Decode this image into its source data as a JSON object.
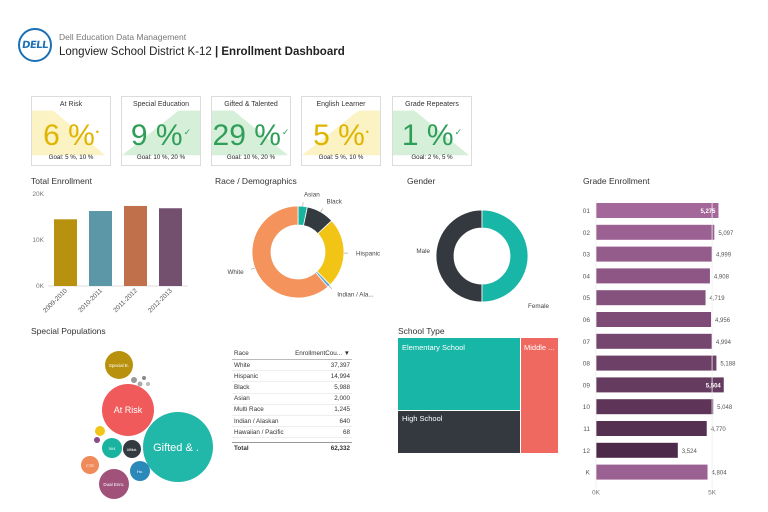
{
  "header": {
    "subtitle": "Dell Education Data Management",
    "district": "Longview School District K-12",
    "separator": "|",
    "dashboard": "Enrollment Dashboard",
    "logo_text": "DELL"
  },
  "kpis": [
    {
      "name": "At Risk",
      "value": "6 %",
      "mark": "•",
      "status": "amber",
      "goal": "Goal: 5 %, 10 %"
    },
    {
      "name": "Special Education",
      "value": "9 %",
      "mark": "✓",
      "status": "green",
      "goal": "Goal: 10 %, 20 %"
    },
    {
      "name": "Gifted & Talented",
      "value": "29 %",
      "mark": "✓",
      "status": "green",
      "goal": "Goal: 10 %, 20 %"
    },
    {
      "name": "English Learner",
      "value": "5 %",
      "mark": "•",
      "status": "amber",
      "goal": "Goal: 5 %, 10 %"
    },
    {
      "name": "Grade Repeaters",
      "value": "1 %",
      "mark": "✓",
      "status": "green",
      "goal": "Goal: 2 %, 5 %"
    }
  ],
  "panels": {
    "total_enrollment": "Total Enrollment",
    "race": "Race / Demographics",
    "gender": "Gender",
    "grade": "Grade Enrollment",
    "special_pop": "Special Populations",
    "school_type": "School Type"
  },
  "colors": {
    "amber_bg": "#fbf3c4",
    "green_bg": "#d6efd9",
    "teal": "#18b6a6",
    "dark": "#33393f",
    "coral": "#f06960",
    "purple_light": "#a4679a",
    "purple_dark": "#4e2a4a"
  },
  "chart_data": [
    {
      "type": "bar",
      "title": "Total Enrollment",
      "categories": [
        "2009-2010",
        "2010-2011",
        "2011-2012",
        "2012-2013"
      ],
      "values": [
        14500,
        16300,
        17400,
        16900
      ],
      "colors": [
        "#b8920f",
        "#5c97a8",
        "#c0714c",
        "#73506e"
      ],
      "ylim": [
        0,
        20000
      ],
      "ytick_labels": [
        "20K",
        "10K",
        "0K"
      ],
      "ytick_values": [
        20000,
        10000,
        0
      ]
    },
    {
      "type": "pie",
      "title": "Race / Demographics",
      "labels": [
        "Asian",
        "Black",
        "Hispanic",
        "Indian / Ala...",
        "White"
      ],
      "values": [
        2000,
        5988,
        14994,
        640,
        37397
      ],
      "extra_values": [
        1245,
        68
      ],
      "colors": [
        "#1ab3a0",
        "#333a40",
        "#f2c415",
        "#5aa7d6",
        "#f4945c"
      ]
    },
    {
      "type": "pie",
      "title": "Gender",
      "labels": [
        "Male",
        "Female"
      ],
      "values": [
        50,
        50
      ],
      "colors": [
        "#33393f",
        "#18b6a6"
      ]
    },
    {
      "type": "bar",
      "orientation": "horizontal",
      "title": "Grade Enrollment",
      "categories": [
        "01",
        "02",
        "03",
        "04",
        "05",
        "06",
        "07",
        "08",
        "09",
        "10",
        "11",
        "12",
        "K"
      ],
      "values": [
        5275,
        5097,
        4999,
        4908,
        4719,
        4956,
        4994,
        5188,
        5504,
        5048,
        4770,
        3524,
        4804
      ],
      "labels": [
        "5,275",
        "5,097",
        "4,999",
        "4,908",
        "4,719",
        "4,956",
        "4,994",
        "5,188",
        "5,504",
        "5,048",
        "4,770",
        "3,524",
        "4,804"
      ],
      "xlim": [
        0,
        5600
      ],
      "xtick_labels": [
        "0K",
        "5K"
      ],
      "xtick_values": [
        0,
        5000
      ]
    },
    {
      "type": "table",
      "columns": [
        "Race",
        "EnrollmentCou..."
      ],
      "rows": [
        [
          "White",
          "37,397"
        ],
        [
          "Hispanic",
          "14,994"
        ],
        [
          "Black",
          "5,988"
        ],
        [
          "Asian",
          "2,000"
        ],
        [
          "Multi Race",
          "1,245"
        ],
        [
          "Indian / Alaskan",
          "640"
        ],
        [
          "Hawaiian / Pacific",
          "68"
        ]
      ],
      "total": [
        "Total",
        "62,332"
      ]
    },
    {
      "type": "scatter",
      "title": "Special Populations",
      "bubbles": [
        {
          "label": "Special E.",
          "color": "#b8920f"
        },
        {
          "label": "At Risk",
          "color": "#f05a5a"
        },
        {
          "label": "Gifted & .",
          "color": "#21b8aa"
        },
        {
          "label": "504",
          "color": "#1ab3a0"
        },
        {
          "label": "Affiliat.",
          "color": "#333a40"
        },
        {
          "label": "Ho.",
          "color": "#2a89b8"
        },
        {
          "label": "Dual Enro.",
          "color": "#a0527a"
        },
        {
          "label": "CTE",
          "color": "#f08a5a"
        }
      ]
    },
    {
      "type": "heatmap",
      "title": "School Type",
      "cells": [
        {
          "label": "Elementary School",
          "color": "#18b6a6"
        },
        {
          "label": "Middle ...",
          "color": "#f06960"
        },
        {
          "label": "High School",
          "color": "#33393f"
        }
      ]
    }
  ]
}
